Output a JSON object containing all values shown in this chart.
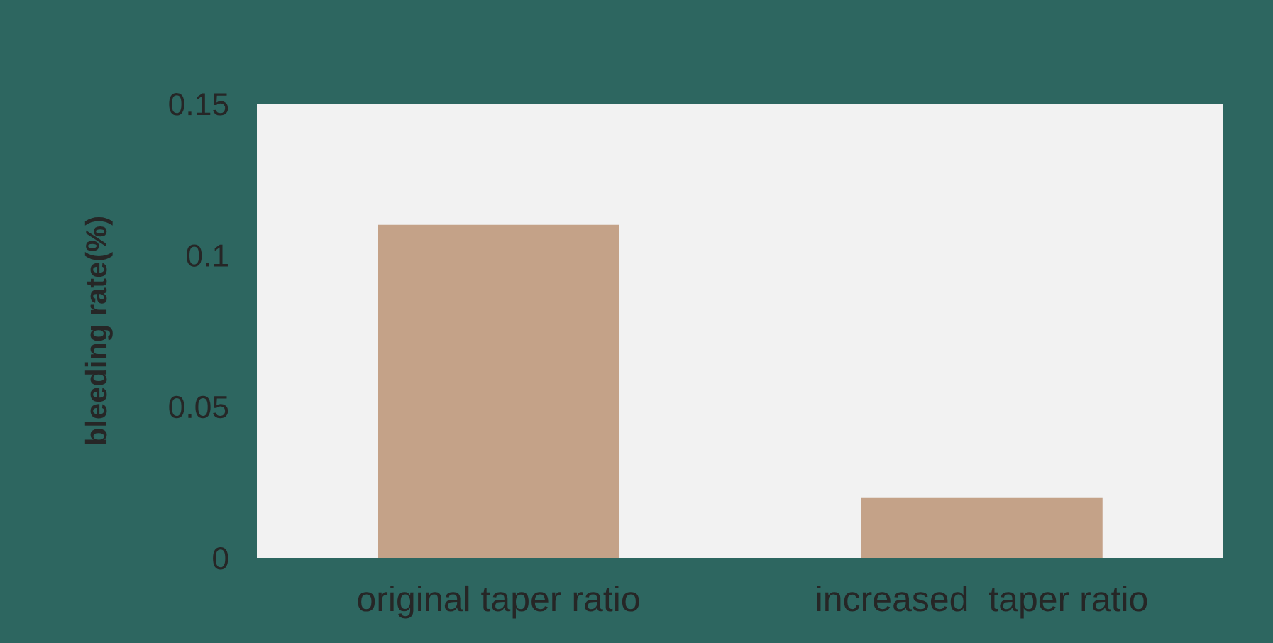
{
  "chart_data": {
    "type": "bar",
    "ylabel": "bleeding rate(%)",
    "categories": [
      "original taper ratio",
      "increased  taper ratio"
    ],
    "values": [
      0.11,
      0.02
    ],
    "color": "#c4a288",
    "ylim": [
      0,
      0.15
    ],
    "yticks": [
      0,
      0.05,
      0.1,
      0.15
    ],
    "grid": false,
    "legend": false
  }
}
